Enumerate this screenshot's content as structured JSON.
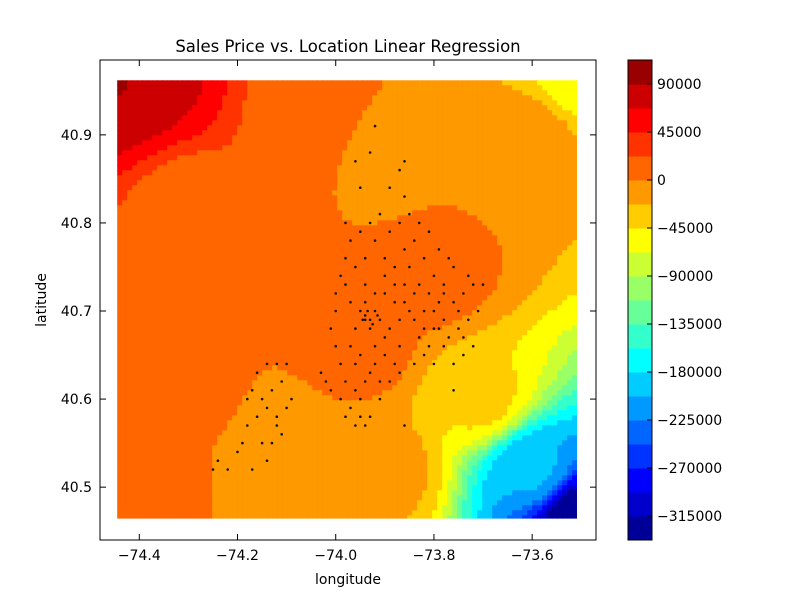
{
  "chart_data": {
    "type": "contour",
    "title": "Sales Price vs. Location Linear Regression",
    "xlabel": "longitude",
    "ylabel": "latitude",
    "xlim": [
      -74.48,
      -73.47
    ],
    "ylim": [
      40.44,
      40.985
    ],
    "grid": false,
    "x_ticks": [
      {
        "value": -74.4,
        "label": "−74.4"
      },
      {
        "value": -74.2,
        "label": "−74.2"
      },
      {
        "value": -74.0,
        "label": "−74.0"
      },
      {
        "value": -73.8,
        "label": "−73.8"
      },
      {
        "value": -73.6,
        "label": "−73.6"
      }
    ],
    "y_ticks": [
      {
        "value": 40.5,
        "label": "40.5"
      },
      {
        "value": 40.6,
        "label": "40.6"
      },
      {
        "value": 40.7,
        "label": "40.7"
      },
      {
        "value": 40.8,
        "label": "40.8"
      },
      {
        "value": 40.9,
        "label": "40.9"
      }
    ],
    "surface_extent": {
      "x": [
        -74.445,
        -73.51
      ],
      "y": [
        40.465,
        40.962
      ]
    },
    "colormap": "jet",
    "colorbar": {
      "range": [
        -337500,
        112500
      ],
      "level_step": 22500,
      "ticks": [
        {
          "value": 90000,
          "label": "90000"
        },
        {
          "value": 45000,
          "label": "45000"
        },
        {
          "value": 0,
          "label": "0"
        },
        {
          "value": -45000,
          "label": "−45000"
        },
        {
          "value": -90000,
          "label": "−90000"
        },
        {
          "value": -135000,
          "label": "−135000"
        },
        {
          "value": -180000,
          "label": "−180000"
        },
        {
          "value": -225000,
          "label": "−225000"
        },
        {
          "value": -270000,
          "label": "−270000"
        },
        {
          "value": -315000,
          "label": "−315000"
        }
      ]
    },
    "field_anchors": [
      {
        "x": -74.44,
        "y": 40.96,
        "v": 95000
      },
      {
        "x": -74.4,
        "y": 40.95,
        "v": 70000
      },
      {
        "x": -74.3,
        "y": 40.82,
        "v": 11000
      },
      {
        "x": -74.05,
        "y": 40.92,
        "v": 11000
      },
      {
        "x": -73.9,
        "y": 40.88,
        "v": -6000
      },
      {
        "x": -73.6,
        "y": 40.9,
        "v": -10000
      },
      {
        "x": -73.51,
        "y": 40.962,
        "v": -55000
      },
      {
        "x": -73.8,
        "y": 40.74,
        "v": 8000
      },
      {
        "x": -73.95,
        "y": 40.66,
        "v": 9000
      },
      {
        "x": -74.3,
        "y": 40.62,
        "v": 4000
      },
      {
        "x": -74.1,
        "y": 40.55,
        "v": -5000
      },
      {
        "x": -73.9,
        "y": 40.52,
        "v": -15000
      },
      {
        "x": -73.7,
        "y": 40.6,
        "v": -40000
      },
      {
        "x": -73.6,
        "y": 40.52,
        "v": -200000
      },
      {
        "x": -73.51,
        "y": 40.465,
        "v": -330000
      },
      {
        "x": -74.4,
        "y": 40.5,
        "v": 3000
      }
    ],
    "scatter_points": [
      [
        -73.92,
        40.91
      ],
      [
        -73.93,
        40.88
      ],
      [
        -73.96,
        40.87
      ],
      [
        -73.87,
        40.86
      ],
      [
        -73.86,
        40.87
      ],
      [
        -73.89,
        40.84
      ],
      [
        -73.86,
        40.83
      ],
      [
        -73.95,
        40.84
      ],
      [
        -73.98,
        40.8
      ],
      [
        -73.95,
        40.79
      ],
      [
        -73.92,
        40.78
      ],
      [
        -73.94,
        40.76
      ],
      [
        -73.9,
        40.76
      ],
      [
        -73.88,
        40.75
      ],
      [
        -73.86,
        40.77
      ],
      [
        -73.84,
        40.78
      ],
      [
        -73.82,
        40.76
      ],
      [
        -73.8,
        40.74
      ],
      [
        -73.78,
        40.73
      ],
      [
        -73.76,
        40.75
      ],
      [
        -73.74,
        40.72
      ],
      [
        -73.72,
        40.73
      ],
      [
        -73.75,
        40.7
      ],
      [
        -73.73,
        40.69
      ],
      [
        -73.78,
        40.69
      ],
      [
        -73.8,
        40.68
      ],
      [
        -73.82,
        40.7
      ],
      [
        -73.84,
        40.72
      ],
      [
        -73.86,
        40.73
      ],
      [
        -73.88,
        40.71
      ],
      [
        -73.9,
        40.72
      ],
      [
        -73.92,
        40.7
      ],
      [
        -73.94,
        40.69
      ],
      [
        -73.93,
        40.68
      ],
      [
        -73.95,
        40.7
      ],
      [
        -73.97,
        40.71
      ],
      [
        -73.98,
        40.73
      ],
      [
        -73.99,
        40.74
      ],
      [
        -73.96,
        40.75
      ],
      [
        -73.94,
        40.73
      ],
      [
        -73.91,
        40.69
      ],
      [
        -73.89,
        40.68
      ],
      [
        -73.87,
        40.69
      ],
      [
        -73.85,
        40.7
      ],
      [
        -73.83,
        40.67
      ],
      [
        -73.81,
        40.66
      ],
      [
        -73.79,
        40.68
      ],
      [
        -73.77,
        40.67
      ],
      [
        -73.74,
        40.65
      ],
      [
        -73.76,
        40.64
      ],
      [
        -74.0,
        40.7
      ],
      [
        -74.01,
        40.68
      ],
      [
        -74.0,
        40.66
      ],
      [
        -73.99,
        40.64
      ],
      [
        -73.98,
        40.62
      ],
      [
        -73.96,
        40.61
      ],
      [
        -73.95,
        40.6
      ],
      [
        -73.97,
        40.59
      ],
      [
        -73.99,
        40.6
      ],
      [
        -74.02,
        40.62
      ],
      [
        -74.03,
        40.63
      ],
      [
        -74.01,
        40.61
      ],
      [
        -73.94,
        40.62
      ],
      [
        -73.92,
        40.64
      ],
      [
        -73.9,
        40.65
      ],
      [
        -73.88,
        40.64
      ],
      [
        -73.93,
        40.58
      ],
      [
        -73.91,
        40.6
      ],
      [
        -73.95,
        40.58
      ],
      [
        -73.94,
        40.57
      ],
      [
        -73.96,
        40.57
      ],
      [
        -73.98,
        40.58
      ],
      [
        -73.86,
        40.57
      ],
      [
        -73.76,
        40.61
      ],
      [
        -74.14,
        40.64
      ],
      [
        -74.16,
        40.63
      ],
      [
        -74.12,
        40.64
      ],
      [
        -74.1,
        40.64
      ],
      [
        -74.11,
        40.62
      ],
      [
        -74.13,
        40.61
      ],
      [
        -74.15,
        40.6
      ],
      [
        -74.17,
        40.61
      ],
      [
        -74.14,
        40.59
      ],
      [
        -74.12,
        40.58
      ],
      [
        -74.1,
        40.59
      ],
      [
        -74.09,
        40.6
      ],
      [
        -74.11,
        40.56
      ],
      [
        -74.13,
        40.55
      ],
      [
        -74.15,
        40.55
      ],
      [
        -74.18,
        40.57
      ],
      [
        -74.19,
        40.55
      ],
      [
        -74.2,
        40.54
      ],
      [
        -74.22,
        40.52
      ],
      [
        -74.24,
        40.53
      ],
      [
        -74.25,
        40.52
      ],
      [
        -74.17,
        40.52
      ],
      [
        -74.14,
        40.53
      ],
      [
        -74.12,
        40.57
      ],
      [
        -74.18,
        40.6
      ],
      [
        -74.16,
        40.58
      ],
      [
        -73.85,
        40.75
      ],
      [
        -73.83,
        40.73
      ],
      [
        -73.81,
        40.72
      ],
      [
        -73.79,
        40.71
      ],
      [
        -73.87,
        40.66
      ],
      [
        -73.9,
        40.67
      ],
      [
        -73.92,
        40.66
      ],
      [
        -73.95,
        40.65
      ],
      [
        -73.97,
        40.66
      ],
      [
        -73.96,
        40.64
      ],
      [
        -73.93,
        40.63
      ],
      [
        -73.91,
        40.62
      ],
      [
        -73.89,
        40.62
      ],
      [
        -73.87,
        40.63
      ],
      [
        -73.84,
        40.64
      ],
      [
        -73.82,
        40.65
      ],
      [
        -73.8,
        40.64
      ],
      [
        -73.78,
        40.66
      ],
      [
        -73.75,
        40.68
      ],
      [
        -73.71,
        40.7
      ],
      [
        -73.73,
        40.74
      ],
      [
        -73.77,
        40.76
      ],
      [
        -73.79,
        40.77
      ],
      [
        -73.81,
        40.79
      ],
      [
        -73.83,
        40.8
      ],
      [
        -73.85,
        40.81
      ],
      [
        -73.87,
        40.8
      ],
      [
        -73.89,
        40.79
      ],
      [
        -73.91,
        40.81
      ],
      [
        -73.93,
        40.8
      ],
      [
        -73.97,
        40.78
      ],
      [
        -73.98,
        40.76
      ],
      [
        -74.0,
        40.72
      ],
      [
        -73.96,
        40.68
      ],
      [
        -73.94,
        40.71
      ],
      [
        -73.92,
        40.72
      ],
      [
        -73.9,
        40.74
      ],
      [
        -73.88,
        40.73
      ],
      [
        -73.86,
        40.71
      ],
      [
        -73.84,
        40.69
      ],
      [
        -73.82,
        40.68
      ],
      [
        -73.8,
        40.7
      ],
      [
        -73.78,
        40.72
      ],
      [
        -73.76,
        40.71
      ],
      [
        -73.74,
        40.67
      ],
      [
        -73.72,
        40.66
      ],
      [
        -73.7,
        40.73
      ],
      [
        -73.93,
        40.69
      ],
      [
        -73.94,
        40.695
      ],
      [
        -73.925,
        40.685
      ],
      [
        -73.935,
        40.7
      ],
      [
        -73.945,
        40.69
      ],
      [
        -73.915,
        40.695
      ]
    ]
  }
}
